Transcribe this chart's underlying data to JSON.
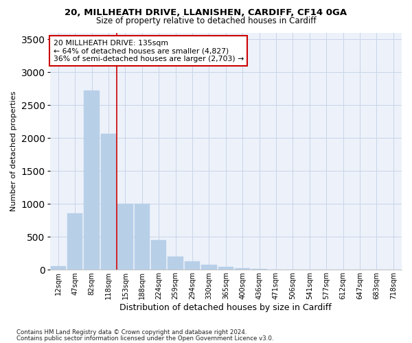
{
  "title1": "20, MILLHEATH DRIVE, LLANISHEN, CARDIFF, CF14 0GA",
  "title2": "Size of property relative to detached houses in Cardiff",
  "xlabel": "Distribution of detached houses by size in Cardiff",
  "ylabel": "Number of detached properties",
  "bar_color": "#b8cfe8",
  "categories": [
    "12sqm",
    "47sqm",
    "82sqm",
    "118sqm",
    "153sqm",
    "188sqm",
    "224sqm",
    "259sqm",
    "294sqm",
    "330sqm",
    "365sqm",
    "400sqm",
    "436sqm",
    "471sqm",
    "506sqm",
    "541sqm",
    "577sqm",
    "612sqm",
    "647sqm",
    "683sqm",
    "718sqm"
  ],
  "values": [
    50,
    855,
    2720,
    2060,
    1000,
    1000,
    450,
    205,
    130,
    75,
    40,
    28,
    15,
    8,
    4,
    2,
    1,
    0,
    0,
    0,
    0
  ],
  "ylim": [
    0,
    3600
  ],
  "yticks": [
    0,
    500,
    1000,
    1500,
    2000,
    2500,
    3000,
    3500
  ],
  "vline_index": 3.5,
  "annotation_text": "20 MILLHEATH DRIVE: 135sqm\n← 64% of detached houses are smaller (4,827)\n36% of semi-detached houses are larger (2,703) →",
  "vline_color": "#cc0000",
  "grid_color": "#c8d4e8",
  "background_color": "#edf2fa",
  "footer1": "Contains HM Land Registry data © Crown copyright and database right 2024.",
  "footer2": "Contains public sector information licensed under the Open Government Licence v3.0."
}
